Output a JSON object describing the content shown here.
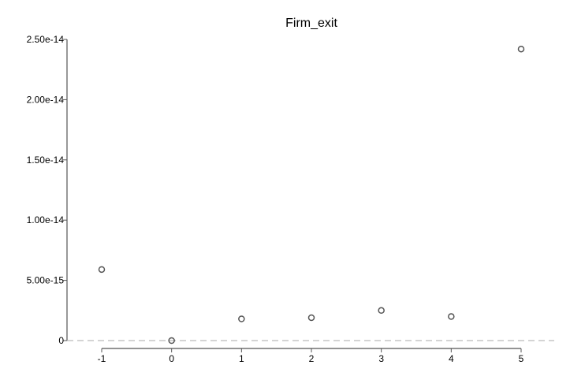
{
  "chart_data": {
    "type": "scatter",
    "title": "Firm_exit",
    "xlabel": "",
    "ylabel": "",
    "x": [
      -1,
      0,
      1,
      2,
      3,
      4,
      5
    ],
    "y": [
      5.9e-15,
      0,
      1.8e-15,
      1.9e-15,
      2.5e-15,
      2e-15,
      2.42e-14
    ],
    "x_ticks": [
      "-1",
      "0",
      "1",
      "2",
      "3",
      "4",
      "5"
    ],
    "y_ticks": [
      {
        "value": 0,
        "label": "0"
      },
      {
        "value": 5e-15,
        "label": "5.00e-15"
      },
      {
        "value": 1e-14,
        "label": "1.00e-14"
      },
      {
        "value": 1.5e-14,
        "label": "1.50e-14"
      },
      {
        "value": 2e-14,
        "label": "2.00e-14"
      },
      {
        "value": 2.5e-14,
        "label": "2.50e-14"
      }
    ],
    "xlim": [
      -1,
      5
    ],
    "ylim": [
      0,
      2.5e-14
    ],
    "reference_line": {
      "y": 0,
      "style": "dashed"
    },
    "grid": false,
    "colors": {
      "marker": "#555555",
      "axis": "#555555",
      "reference": "#aaaaaa"
    }
  }
}
